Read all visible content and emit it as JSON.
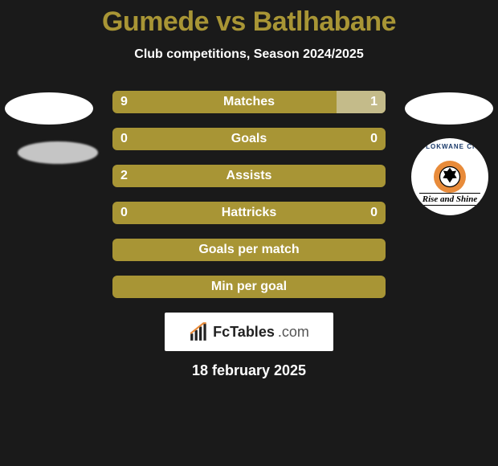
{
  "title": "Gumede vs Batlhabane",
  "subtitle": "Club competitions, Season 2024/2025",
  "date": "18 february 2025",
  "accent_color": "#a89535",
  "accent_light": "#c4bb8a",
  "background": "#1a1a1a",
  "text_color": "#ffffff",
  "crest": {
    "arc_text": "POLOKWANE  CITY",
    "banner_text": "Rise and Shine",
    "center_bg": "#e88b3a"
  },
  "brand": {
    "name": "FcTables",
    "suffix": ".com"
  },
  "bars": [
    {
      "label": "Matches",
      "left": "9",
      "right": "1",
      "left_pct": 80,
      "right_light_pct": 18
    },
    {
      "label": "Goals",
      "left": "0",
      "right": "0",
      "left_pct": 100,
      "right_light_pct": 0
    },
    {
      "label": "Assists",
      "left": "2",
      "right": "",
      "left_pct": 100,
      "right_light_pct": 0
    },
    {
      "label": "Hattricks",
      "left": "0",
      "right": "0",
      "left_pct": 100,
      "right_light_pct": 0
    },
    {
      "label": "Goals per match",
      "left": "",
      "right": "",
      "left_pct": 100,
      "right_light_pct": 0
    },
    {
      "label": "Min per goal",
      "left": "",
      "right": "",
      "left_pct": 100,
      "right_light_pct": 0
    }
  ]
}
